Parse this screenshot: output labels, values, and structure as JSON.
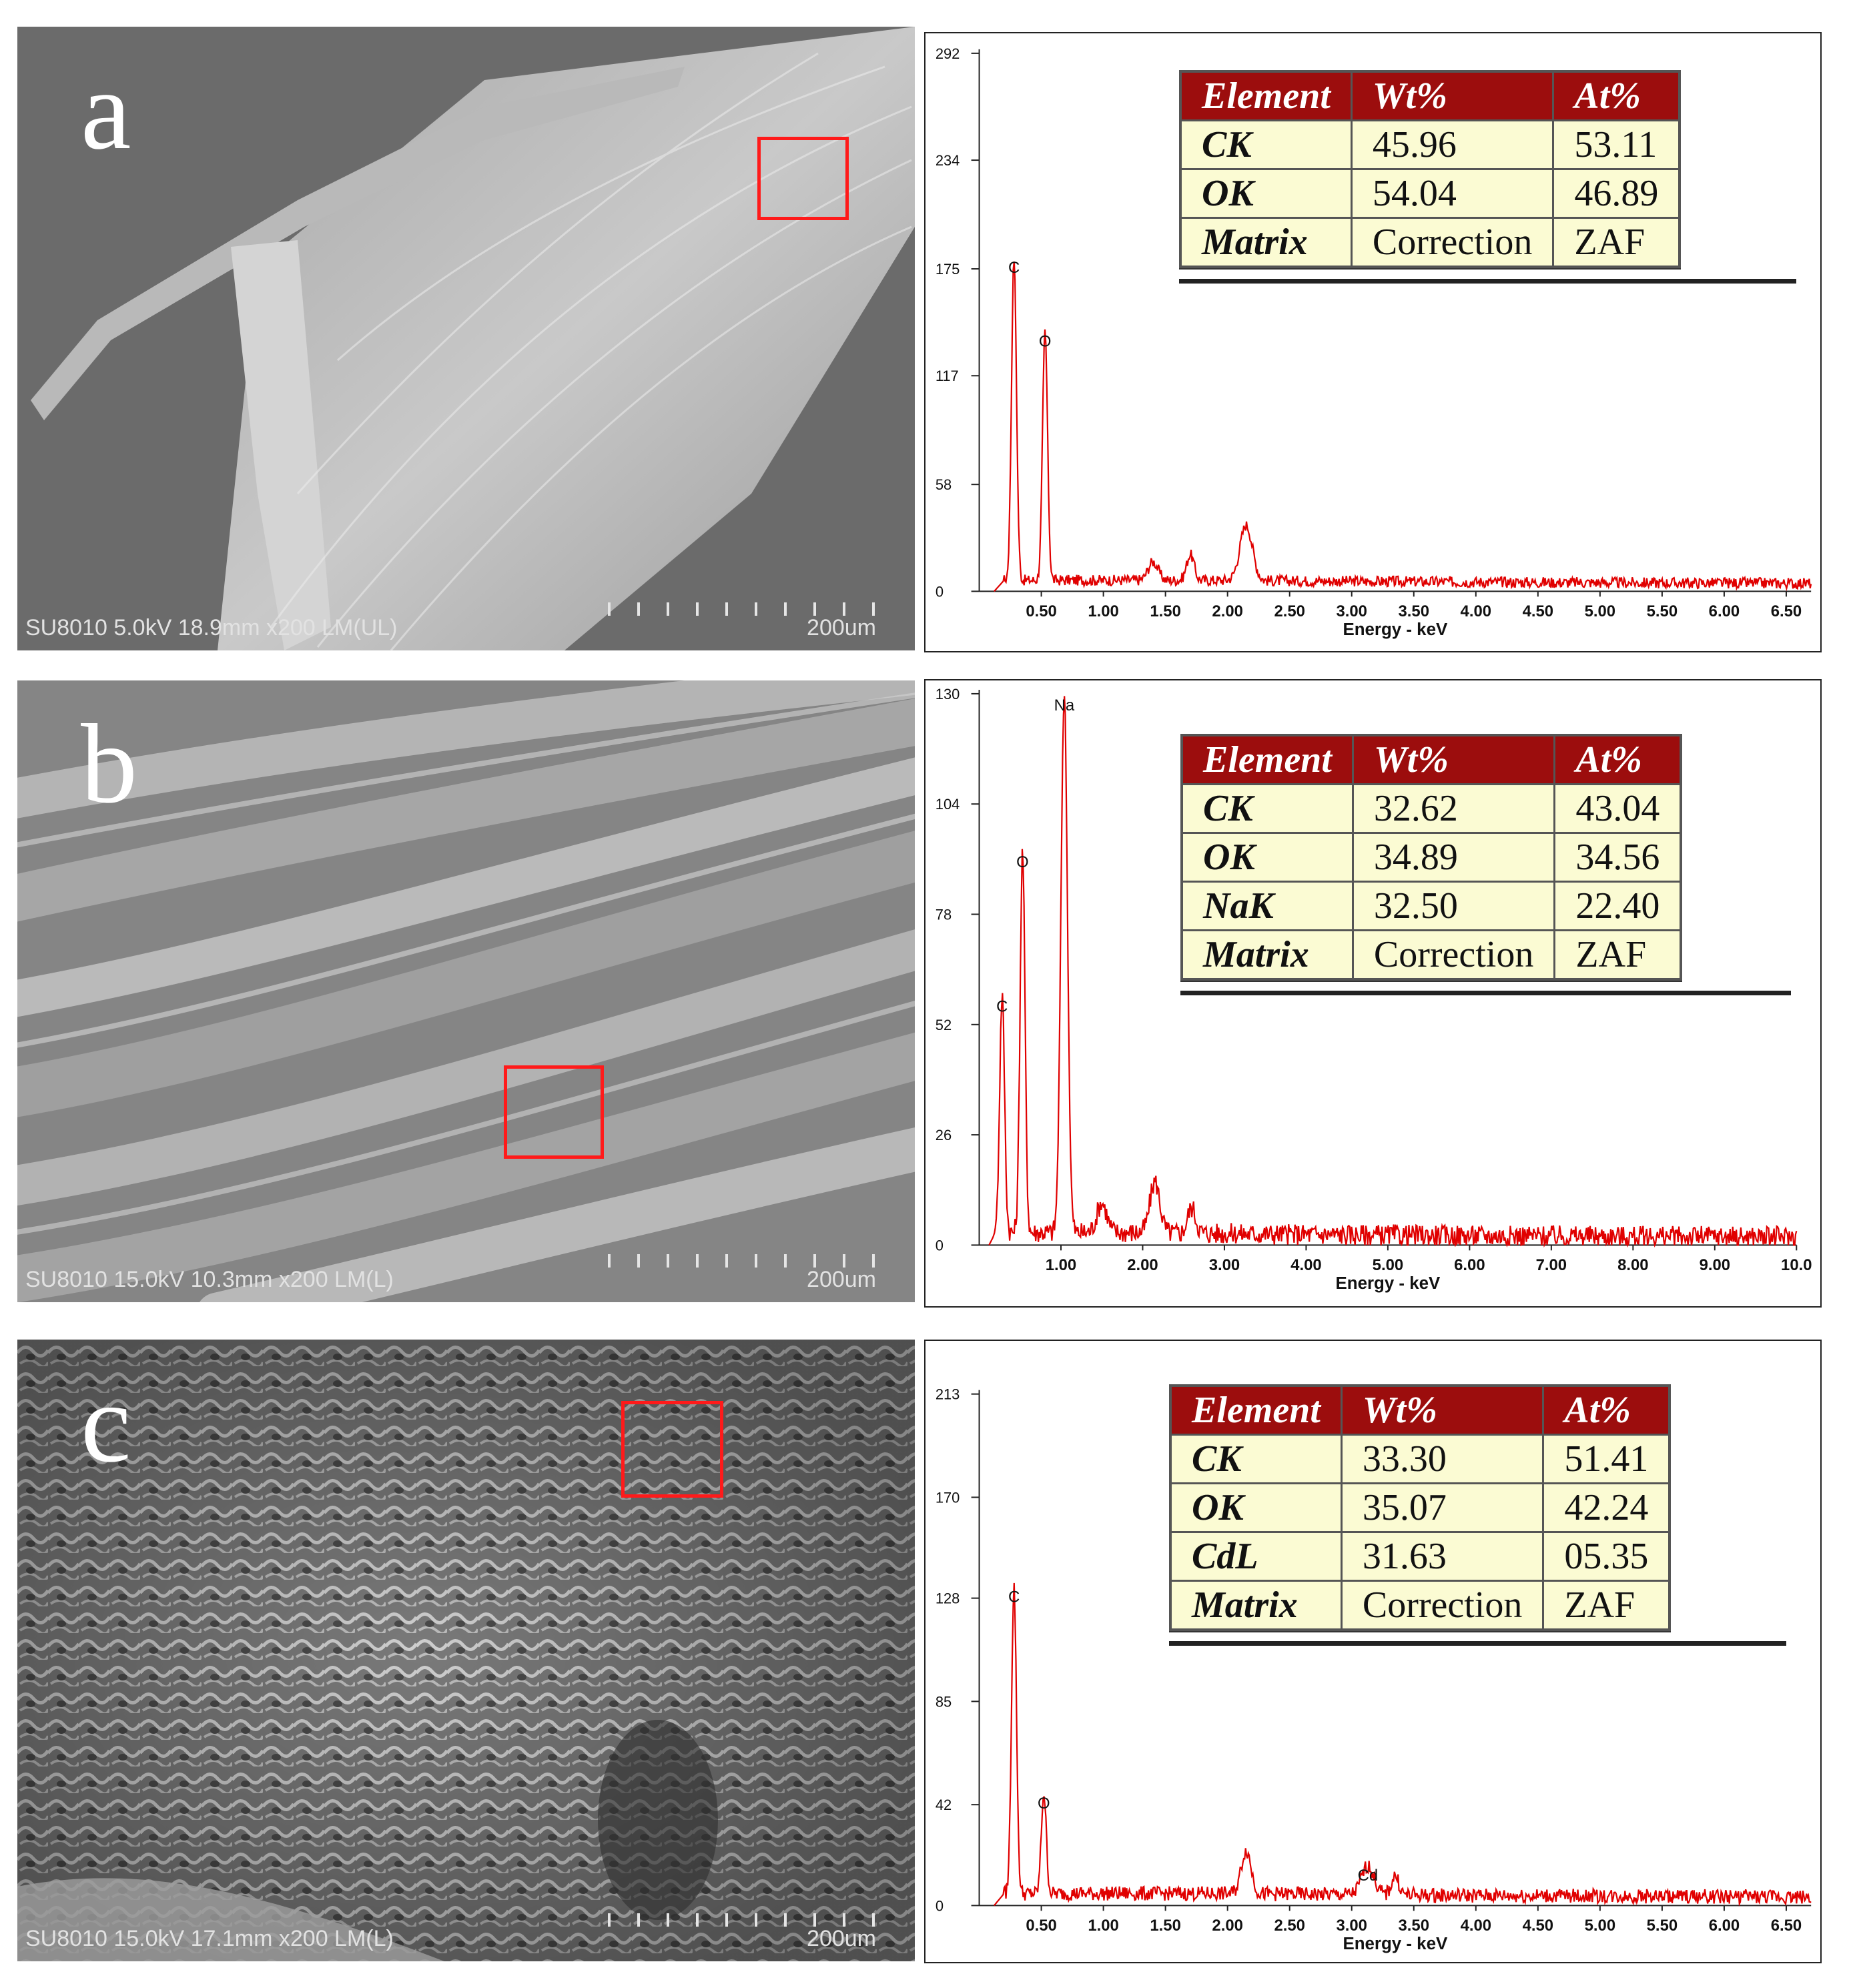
{
  "panels": [
    {
      "letter": "a",
      "sem": {
        "info": "SU8010 5.0kV 18.9mm x200 LM(UL)",
        "scale_label": "200um"
      },
      "table": {
        "headers": [
          "Element",
          "Wt%",
          "At%"
        ],
        "rows": [
          [
            "CK",
            "45.96",
            "53.11"
          ],
          [
            "OK",
            "54.04",
            "46.89"
          ],
          [
            "Matrix",
            "Correction",
            "ZAF"
          ]
        ]
      }
    },
    {
      "letter": "b",
      "sem": {
        "info": "SU8010 15.0kV 10.3mm x200 LM(L)",
        "scale_label": "200um"
      },
      "table": {
        "headers": [
          "Element",
          "Wt%",
          "At%"
        ],
        "rows": [
          [
            "CK",
            "32.62",
            "43.04"
          ],
          [
            "OK",
            "34.89",
            "34.56"
          ],
          [
            "NaK",
            "32.50",
            "22.40"
          ],
          [
            "Matrix",
            "Correction",
            "ZAF"
          ]
        ]
      }
    },
    {
      "letter": "c",
      "sem": {
        "info": "SU8010 15.0kV 17.1mm x200 LM(L)",
        "scale_label": "200um"
      },
      "table": {
        "headers": [
          "Element",
          "Wt%",
          "At%"
        ],
        "rows": [
          [
            "CK",
            "33.30",
            "51.41"
          ],
          [
            "OK",
            "35.07",
            "42.24"
          ],
          [
            "CdL",
            "31.63",
            "05.35"
          ],
          [
            "Matrix",
            "Correction",
            "ZAF"
          ]
        ]
      }
    }
  ],
  "chart_data": [
    {
      "type": "line",
      "xlabel": "Energy - keV",
      "ylabel": "",
      "xlim": [
        0,
        6.7
      ],
      "ylim": [
        0,
        292
      ],
      "xticks": [
        "0.50",
        "1.00",
        "1.50",
        "2.00",
        "2.50",
        "3.00",
        "3.50",
        "4.00",
        "4.50",
        "5.00",
        "5.50",
        "6.00",
        "6.50"
      ],
      "yticks": [
        "0",
        "58",
        "117",
        "175",
        "234",
        "292"
      ],
      "baseline": 6,
      "noise": 3,
      "peaks": [
        {
          "label": "C",
          "x": 0.28,
          "y": 175,
          "w": 0.02
        },
        {
          "label": "O",
          "x": 0.53,
          "y": 135,
          "w": 0.02
        },
        {
          "label": "",
          "x": 1.4,
          "y": 10,
          "w": 0.04
        },
        {
          "label": "",
          "x": 1.7,
          "y": 14,
          "w": 0.03
        },
        {
          "label": "",
          "x": 2.15,
          "y": 30,
          "w": 0.05
        }
      ]
    },
    {
      "type": "line",
      "xlabel": "Energy - keV",
      "ylabel": "",
      "xlim": [
        0,
        10
      ],
      "ylim": [
        0,
        130
      ],
      "xticks": [
        "1.00",
        "2.00",
        "3.00",
        "4.00",
        "5.00",
        "6.00",
        "7.00",
        "8.00",
        "9.00",
        "10.0"
      ],
      "yticks": [
        "0",
        "26",
        "52",
        "78",
        "104",
        "130"
      ],
      "baseline": 3,
      "noise": 2.5,
      "peaks": [
        {
          "label": "C",
          "x": 0.28,
          "y": 56,
          "w": 0.03
        },
        {
          "label": "O",
          "x": 0.53,
          "y": 90,
          "w": 0.03
        },
        {
          "label": "Na",
          "x": 1.04,
          "y": 127,
          "w": 0.04
        },
        {
          "label": "",
          "x": 1.5,
          "y": 7,
          "w": 0.06
        },
        {
          "label": "",
          "x": 2.15,
          "y": 12,
          "w": 0.06
        },
        {
          "label": "",
          "x": 2.6,
          "y": 6,
          "w": 0.05
        }
      ]
    },
    {
      "type": "line",
      "xlabel": "Energy - keV",
      "ylabel": "",
      "xlim": [
        0,
        6.7
      ],
      "ylim": [
        0,
        213
      ],
      "xticks": [
        "0.50",
        "1.00",
        "1.50",
        "2.00",
        "2.50",
        "3.00",
        "3.50",
        "4.00",
        "4.50",
        "5.00",
        "5.50",
        "6.00",
        "6.50"
      ],
      "yticks": [
        "0",
        "42",
        "85",
        "128",
        "170",
        "213"
      ],
      "baseline": 5,
      "noise": 3,
      "peaks": [
        {
          "label": "C",
          "x": 0.28,
          "y": 128,
          "w": 0.02
        },
        {
          "label": "O",
          "x": 0.52,
          "y": 42,
          "w": 0.02
        },
        {
          "label": "",
          "x": 2.15,
          "y": 18,
          "w": 0.04
        },
        {
          "label": "Cd",
          "x": 3.13,
          "y": 12,
          "w": 0.05
        },
        {
          "label": "",
          "x": 3.35,
          "y": 8,
          "w": 0.03
        }
      ]
    }
  ],
  "colors": {
    "spectrum": "#e00000",
    "table_header": "#9c0d0d",
    "table_cell": "#fbfbd3",
    "roi": "#ff1a1a"
  }
}
